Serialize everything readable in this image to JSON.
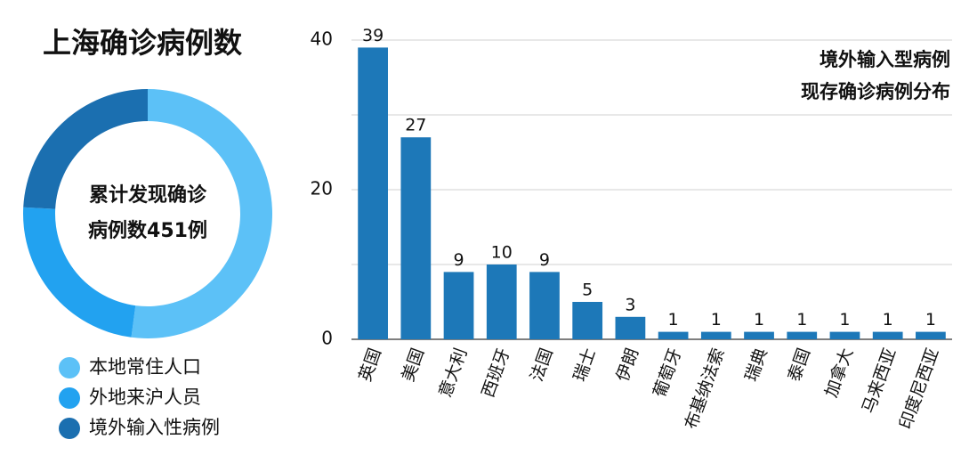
{
  "chart_data": [
    {
      "type": "donut",
      "title": "上海确诊病例数",
      "center_text": [
        "累计发现确诊",
        "病例数451例"
      ],
      "categories": [
        "本地常住人口",
        "外地来沪人员",
        "境外输入性病例"
      ],
      "values": [
        235,
        107,
        109
      ],
      "colors": [
        "#5cc1f7",
        "#22a2f0",
        "#1b6fb0"
      ],
      "legend": "bottom"
    },
    {
      "type": "bar",
      "annotation": [
        "境外输入型病例",
        "现存确诊病例分布"
      ],
      "categories": [
        "英国",
        "美国",
        "意大利",
        "西班牙",
        "法国",
        "瑞士",
        "伊朗",
        "葡萄牙",
        "布基纳法索",
        "瑞典",
        "泰国",
        "加拿大",
        "马来西亚",
        "印度尼西亚"
      ],
      "values": [
        39,
        27,
        9,
        10,
        9,
        5,
        3,
        1,
        1,
        1,
        1,
        1,
        1,
        1
      ],
      "color": "#1d78b8",
      "ylim": [
        0,
        40
      ],
      "yticks": [
        0,
        20,
        40
      ],
      "yticks_minor": [
        10,
        30
      ],
      "grid": true
    }
  ]
}
